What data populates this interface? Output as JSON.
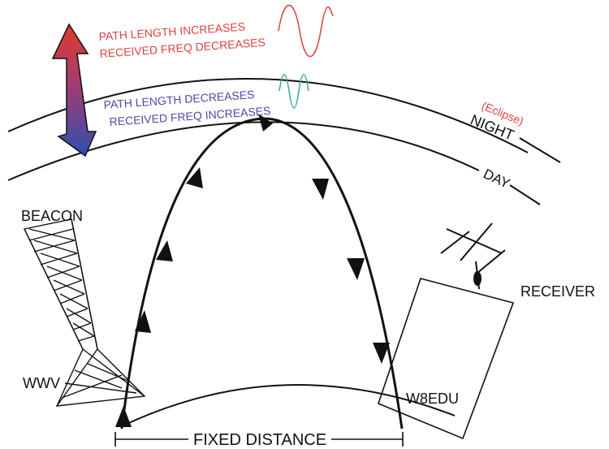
{
  "labels": {
    "red_line1": "PATH LENGTH INCREASES",
    "red_line2": "RECEIVED FREQ DECREASES",
    "blue_line1": "PATH LENGTH DECREASES",
    "blue_line2": "RECEIVED FREQ INCREASES",
    "eclipse": "(Eclipse)",
    "night": "NIGHT",
    "day": "DAY",
    "beacon": "BEACON",
    "wwv": "WWV",
    "receiver": "RECEIVER",
    "w8edu": "W8EDU",
    "fixed_distance": "FIXED DISTANCE"
  },
  "colors": {
    "ink": "#111111",
    "red_text": "#d9453f",
    "blue_text": "#4a4aa8",
    "red_wave": "#d9453f",
    "teal_wave": "#3aa89a",
    "arrow_top": "#e23a2e",
    "arrow_bottom": "#2e4fb0"
  }
}
